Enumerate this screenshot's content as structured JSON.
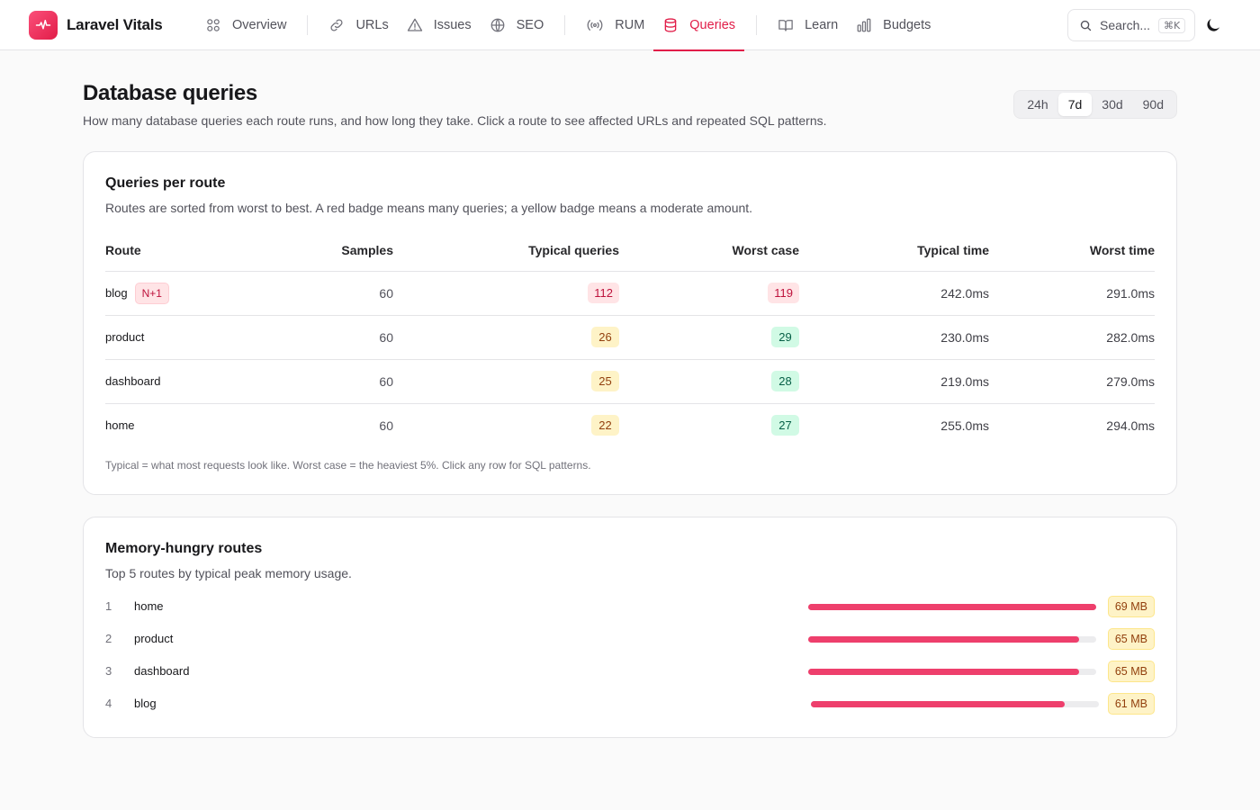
{
  "app": {
    "name": "Laravel Vitals",
    "logo_icon": "pulse-icon",
    "accent": "#e11d48"
  },
  "nav": {
    "items": [
      {
        "label": "Overview",
        "icon": "grid-icon"
      },
      {
        "label": "URLs",
        "icon": "link-icon"
      },
      {
        "label": "Issues",
        "icon": "warning-icon"
      },
      {
        "label": "SEO",
        "icon": "globe-icon"
      },
      {
        "label": "RUM",
        "icon": "broadcast-icon"
      },
      {
        "label": "Queries",
        "icon": "database-icon",
        "active": true
      },
      {
        "label": "Learn",
        "icon": "book-icon"
      },
      {
        "label": "Budgets",
        "icon": "bar-chart-icon"
      }
    ]
  },
  "search": {
    "placeholder": "Search...",
    "shortcut": "⌘K"
  },
  "page": {
    "title": "Database queries",
    "description": "How many database queries each route runs, and how long they take. Click a route to see affected URLs and repeated SQL patterns."
  },
  "range": {
    "options": [
      "24h",
      "7d",
      "30d",
      "90d"
    ],
    "selected": "7d"
  },
  "queries_card": {
    "title": "Queries per route",
    "subtitle": "Routes are sorted from worst to best. A red badge means many queries; a yellow badge means a moderate amount.",
    "columns": {
      "route": "Route",
      "samples": "Samples",
      "typical_queries": "Typical queries",
      "worst_case": "Worst case",
      "typical_time": "Typical time",
      "worst_time": "Worst time"
    },
    "rows": [
      {
        "route": "blog",
        "tag": "N+1",
        "samples": "60",
        "typical_queries": "112",
        "typical_level": "red",
        "worst_case": "119",
        "worst_level": "red",
        "typical_time": "242.0ms",
        "worst_time": "291.0ms"
      },
      {
        "route": "product",
        "tag": "",
        "samples": "60",
        "typical_queries": "26",
        "typical_level": "yellow",
        "worst_case": "29",
        "worst_level": "green",
        "typical_time": "230.0ms",
        "worst_time": "282.0ms"
      },
      {
        "route": "dashboard",
        "tag": "",
        "samples": "60",
        "typical_queries": "25",
        "typical_level": "yellow",
        "worst_case": "28",
        "worst_level": "green",
        "typical_time": "219.0ms",
        "worst_time": "279.0ms"
      },
      {
        "route": "home",
        "tag": "",
        "samples": "60",
        "typical_queries": "22",
        "typical_level": "yellow",
        "worst_case": "27",
        "worst_level": "green",
        "typical_time": "255.0ms",
        "worst_time": "294.0ms"
      }
    ],
    "footnote": "Typical = what most requests look like. Worst case = the heaviest 5%. Click any row for SQL patterns."
  },
  "memory_card": {
    "title": "Memory-hungry routes",
    "subtitle": "Top 5 routes by typical peak memory usage.",
    "items": [
      {
        "rank": "1",
        "route": "home",
        "value": "69 MB",
        "fill": 1.0
      },
      {
        "rank": "2",
        "route": "product",
        "value": "65 MB",
        "fill": 0.94
      },
      {
        "rank": "3",
        "route": "dashboard",
        "value": "65 MB",
        "fill": 0.94
      },
      {
        "rank": "4",
        "route": "blog",
        "value": "61 MB",
        "fill": 0.88
      }
    ]
  }
}
